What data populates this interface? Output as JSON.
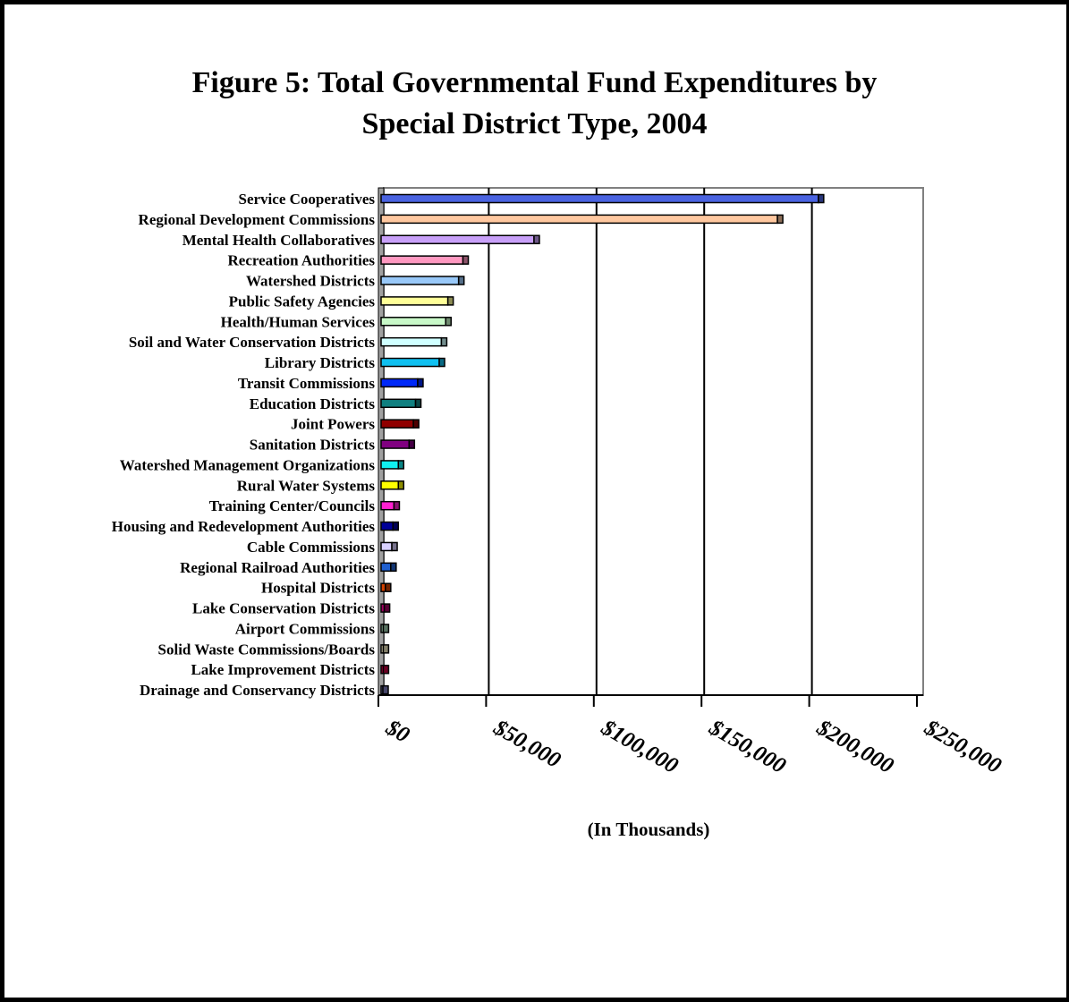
{
  "figure": {
    "title_line1": "Figure 5:  Total Governmental Fund Expenditures by",
    "title_line2": "Special District Type, 2004"
  },
  "chart_data": {
    "type": "bar",
    "orientation": "horizontal",
    "title": "Figure 5:  Total Governmental Fund Expenditures by Special District Type, 2004",
    "xlabel": "(In Thousands)",
    "ylabel": "",
    "xlim": [
      0,
      250000
    ],
    "x_ticks": [
      0,
      50000,
      100000,
      150000,
      200000,
      250000
    ],
    "x_tick_labels": [
      "$0",
      "$50,000",
      "$100,000",
      "$150,000",
      "$200,000",
      "$250,000"
    ],
    "grid": "vertical gridlines",
    "legend": "none",
    "categories": [
      "Service Cooperatives",
      "Regional Development Commissions",
      "Mental Health Collaboratives",
      "Recreation Authorities",
      "Watershed Districts",
      "Public Safety Agencies",
      "Health/Human Services",
      "Soil and Water Conservation Districts",
      "Library Districts",
      "Transit Commissions",
      "Education Districts",
      "Joint Powers",
      "Sanitation Districts",
      "Watershed Management Organizations",
      "Rural Water Systems",
      "Training Center/Councils",
      "Housing and Redevelopment Authorities",
      "Cable Commissions",
      "Regional Railroad Authorities",
      "Hospital Districts",
      "Lake Conservation Districts",
      "Airport Commissions",
      "Solid Waste Commissions/Boards",
      "Lake Improvement Districts",
      "Drainage and Conservancy Districts"
    ],
    "values": [
      203000,
      184000,
      71000,
      38000,
      36000,
      31000,
      30000,
      28000,
      27000,
      17000,
      16000,
      15000,
      13000,
      8000,
      8000,
      6000,
      5500,
      5000,
      4500,
      2000,
      1500,
      1000,
      1000,
      1000,
      800
    ],
    "colors": [
      "#4a63e0",
      "#ffc8a0",
      "#c8a0f8",
      "#ff98c0",
      "#98c8f8",
      "#ffff98",
      "#c8f8c8",
      "#d0ffff",
      "#10c0f0",
      "#0028f8",
      "#108080",
      "#900000",
      "#800080",
      "#10f0f0",
      "#ffff00",
      "#ff20d0",
      "#000098",
      "#d8d0ff",
      "#2060d0",
      "#d04000",
      "#a00060",
      "#a0d0b0",
      "#f0e8c0",
      "#c00040",
      "#8080c0"
    ]
  }
}
